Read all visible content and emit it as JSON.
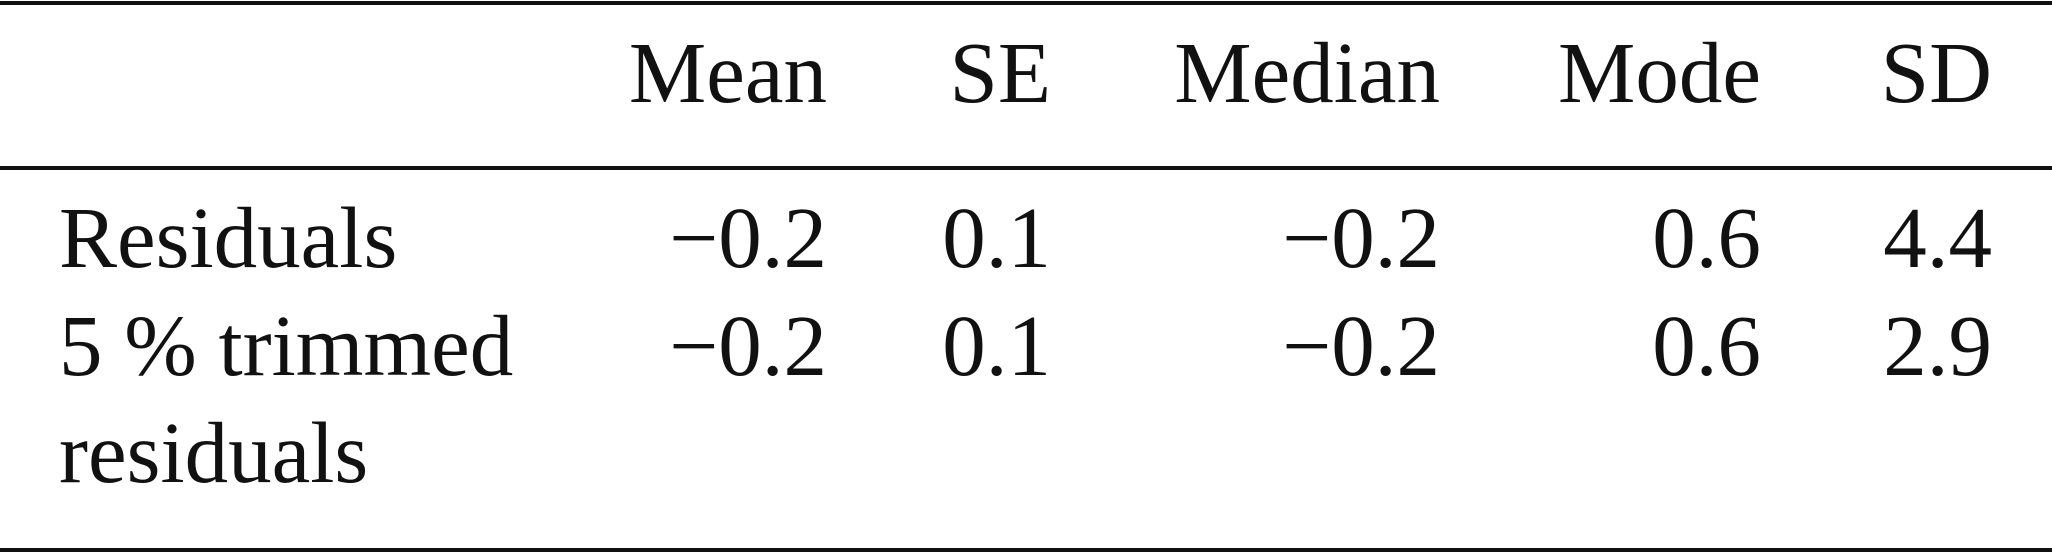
{
  "table": {
    "columns": [
      "Mean",
      "SE",
      "Median",
      "Mode",
      "SD"
    ],
    "rows": [
      [
        "Residuals",
        "−0.2",
        "0.1",
        "−0.2",
        "0.6",
        "4.4"
      ],
      [
        "5 % trimmed residuals",
        "−0.2",
        "0.1",
        "−0.2",
        "0.6",
        "2.9"
      ]
    ]
  }
}
